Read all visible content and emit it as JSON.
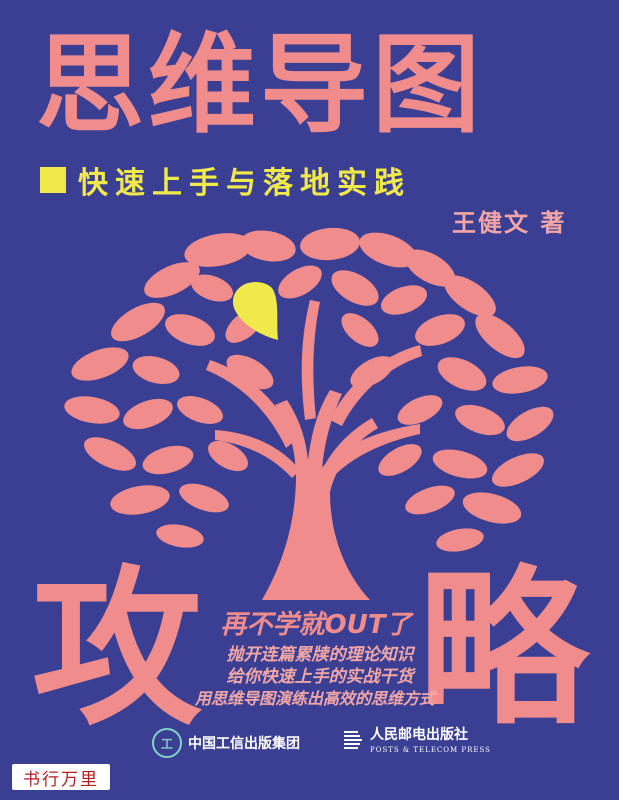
{
  "cover": {
    "title": "思维导图",
    "subtitle": "快速上手与落地实践",
    "author": "王健文 著",
    "big_left": "攻",
    "big_right": "略",
    "slogan": "再不学就OUT了",
    "taglines": [
      "抛开连篇累牍的理论知识",
      "给你快速上手的实战干货",
      "用思维导图演练出高效的思维方式"
    ],
    "publisher_1": "中国工信出版集团",
    "publisher_1_logo": "工",
    "publisher_2_cn": "人民邮电出版社",
    "publisher_2_en": "POSTS & TELECOM PRESS",
    "watermark": "书行万里"
  },
  "colors": {
    "background": "#3a3f94",
    "pink": "#f18c8c",
    "yellow": "#f0e94b"
  }
}
